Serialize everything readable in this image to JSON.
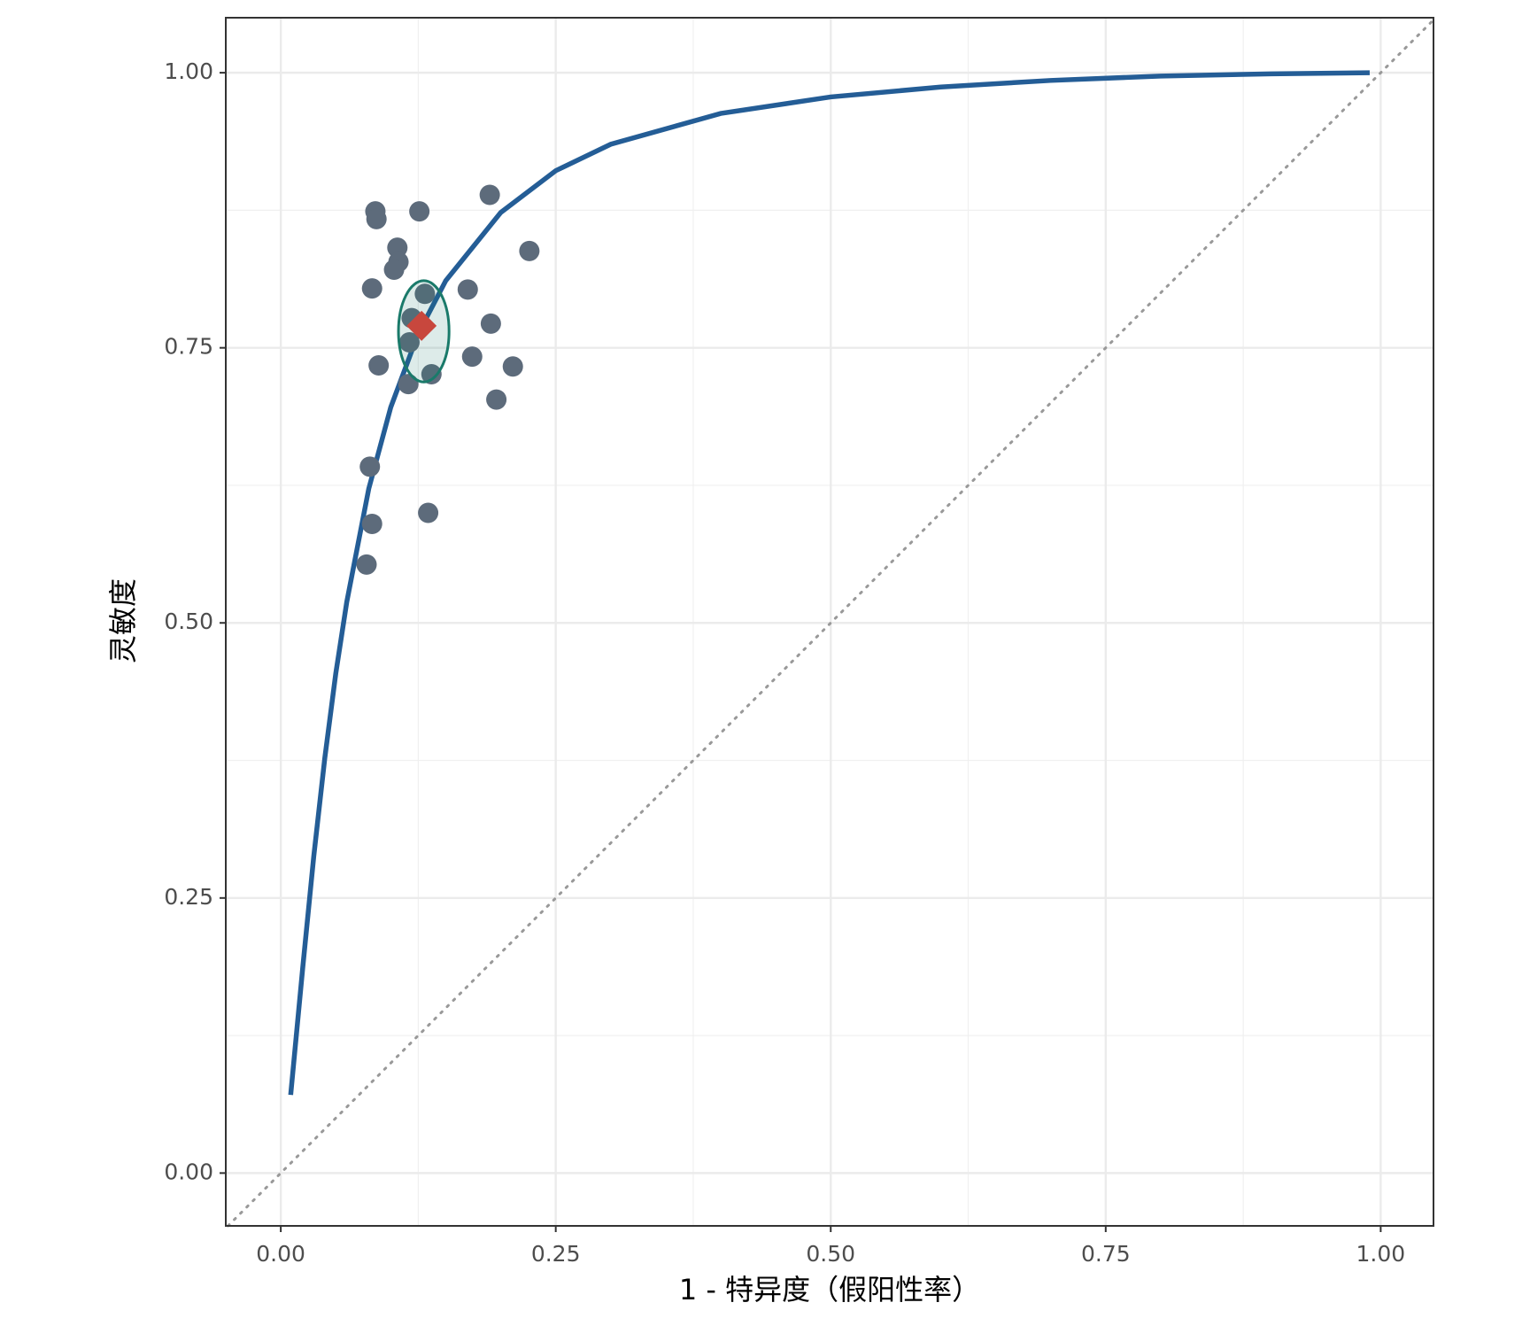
{
  "chart_data": {
    "type": "sroc",
    "x_label": "1 - 特异度（假阳性率）",
    "y_label": "灵敏度",
    "xlim": [
      -0.05,
      1.048
    ],
    "ylim": [
      -0.048,
      1.05
    ],
    "xticks": [
      {
        "value": 0,
        "label": "0.00"
      },
      {
        "value": 0.25,
        "label": "0.25"
      },
      {
        "value": 0.5,
        "label": "0.50"
      },
      {
        "value": 0.75,
        "label": "0.75"
      },
      {
        "value": 1,
        "label": "1.00"
      }
    ],
    "yticks": [
      {
        "value": 0,
        "label": "0.00"
      },
      {
        "value": 0.25,
        "label": "0.25"
      },
      {
        "value": 0.5,
        "label": "0.50"
      },
      {
        "value": 0.75,
        "label": "0.75"
      },
      {
        "value": 1,
        "label": "1.00"
      }
    ],
    "grid": true,
    "curve": {
      "color": "#245d96",
      "x": [
        0.009,
        0.02,
        0.03,
        0.04,
        0.05,
        0.06,
        0.08,
        0.1,
        0.125,
        0.15,
        0.2,
        0.25,
        0.3,
        0.4,
        0.5,
        0.6,
        0.7,
        0.8,
        0.9,
        0.99
      ],
      "y": [
        0.071,
        0.187,
        0.288,
        0.377,
        0.454,
        0.519,
        0.622,
        0.696,
        0.763,
        0.811,
        0.873,
        0.911,
        0.935,
        0.963,
        0.978,
        0.987,
        0.993,
        0.997,
        0.999,
        1.0
      ]
    },
    "points": {
      "color": "#5d6b7b",
      "x": [
        0.086,
        0.087,
        0.126,
        0.19,
        0.106,
        0.107,
        0.103,
        0.226,
        0.083,
        0.131,
        0.17,
        0.119,
        0.191,
        0.117,
        0.174,
        0.089,
        0.137,
        0.211,
        0.116,
        0.196,
        0.081,
        0.134,
        0.083,
        0.078
      ],
      "y": [
        0.874,
        0.867,
        0.874,
        0.889,
        0.841,
        0.828,
        0.821,
        0.838,
        0.804,
        0.799,
        0.803,
        0.777,
        0.772,
        0.755,
        0.742,
        0.734,
        0.726,
        0.733,
        0.717,
        0.703,
        0.642,
        0.6,
        0.59,
        0.553
      ]
    },
    "summary": {
      "color": "#c8473d",
      "x": 0.128,
      "y": 0.77
    },
    "confidence_region": {
      "color": "#1a7a6a",
      "x": 0.13,
      "y": 0.765,
      "rx": 0.023,
      "ry": 0.046
    }
  }
}
